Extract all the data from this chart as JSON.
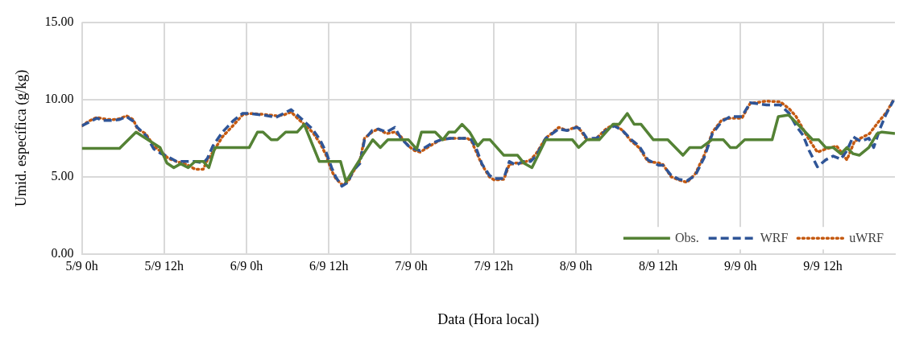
{
  "chart_data": {
    "type": "line",
    "xlabel": "Data (Hora local)",
    "ylabel": "Umid. específica (g/kg)",
    "xlim": [
      "--09-05T00:00",
      "--09-09T22:30"
    ],
    "xticks": [
      {
        "value": "--09-05T00:00",
        "label": "5/9 0h"
      },
      {
        "value": "--09-05T12:00",
        "label": "5/9 12h"
      },
      {
        "value": "--09-06T00:00",
        "label": "6/9 0h"
      },
      {
        "value": "--09-06T12:00",
        "label": "6/9 12h"
      },
      {
        "value": "--09-07T00:00",
        "label": "7/9 0h"
      },
      {
        "value": "--09-07T12:00",
        "label": "7/9 12h"
      },
      {
        "value": "--09-08T00:00",
        "label": "8/9 0h"
      },
      {
        "value": "--09-08T12:00",
        "label": "8/9 12h"
      },
      {
        "value": "--09-09T00:00",
        "label": "9/9 0h"
      },
      {
        "value": "--09-09T12:00",
        "label": "9/9 12h"
      }
    ],
    "ylim": [
      0,
      15
    ],
    "yticks": [
      {
        "value": 0,
        "label": "0.00"
      },
      {
        "value": 5,
        "label": "5.00"
      },
      {
        "value": 10,
        "label": "10.00"
      },
      {
        "value": 15,
        "label": "15.00"
      }
    ],
    "grid": true,
    "legend": "bottom right",
    "marker": "none",
    "series": [
      {
        "name": "Obs.",
        "color": "#548235",
        "line_style": "solid",
        "x": [
          "--09-05T00:00",
          "--09-05T05:30",
          "--09-05T07:54",
          "--09-05T11:24",
          "--09-05T12:24",
          "--09-05T13:24",
          "--09-05T14:24",
          "--09-05T15:30",
          "--09-05T16:30",
          "--09-05T17:42",
          "--09-05T18:30",
          "--09-05T19:24",
          "--09-06T00:24",
          "--09-06T01:36",
          "--09-06T02:24",
          "--09-06T03:36",
          "--09-06T04:30",
          "--09-06T05:42",
          "--09-06T07:24",
          "--09-06T08:24",
          "--09-06T10:36",
          "--09-06T13:42",
          "--09-06T14:30",
          "--09-06T16:54",
          "--09-06T18:24",
          "--09-06T19:30",
          "--09-06T20:36",
          "--09-06T23:36",
          "--09-07T00:48",
          "--09-07T01:30",
          "--09-07T03:30",
          "--09-07T04:36",
          "--09-07T05:30",
          "--09-07T06:24",
          "--09-07T07:24",
          "--09-07T08:30",
          "--09-07T09:42",
          "--09-07T10:30",
          "--09-07T11:30",
          "--09-07T13:30",
          "--09-07T15:30",
          "--09-07T16:24",
          "--09-07T17:36",
          "--09-07T19:36",
          "--09-07T23:30",
          "--09-08T00:24",
          "--09-08T01:36",
          "--09-08T03:24",
          "--09-08T05:24",
          "--09-08T06:18",
          "--09-08T07:30",
          "--09-08T08:30",
          "--09-08T09:30",
          "--09-08T11:18",
          "--09-08T13:24",
          "--09-08T15:36",
          "--09-08T16:36",
          "--09-08T18:18",
          "--09-08T19:48",
          "--09-08T21:30",
          "--09-08T22:30",
          "--09-08T23:24",
          "--09-09T00:36",
          "--09-09T04:36",
          "--09-09T05:30",
          "--09-09T07:00",
          "--09-09T08:48",
          "--09-09T10:30",
          "--09-09T11:24",
          "--09-09T12:24",
          "--09-09T13:30",
          "--09-09T14:36",
          "--09-09T15:30",
          "--09-09T16:24",
          "--09-09T17:18",
          "--09-09T18:42",
          "--09-09T19:54",
          "--09-09T20:36",
          "--09-09T22:30"
        ],
        "values": [
          6.85,
          6.85,
          7.9,
          6.9,
          5.9,
          5.6,
          5.85,
          5.6,
          6.0,
          6.0,
          5.6,
          6.9,
          6.9,
          7.9,
          7.9,
          7.4,
          7.4,
          7.9,
          7.9,
          8.4,
          6.0,
          6.0,
          4.7,
          6.4,
          7.4,
          6.9,
          7.4,
          7.4,
          6.8,
          7.9,
          7.9,
          7.4,
          7.9,
          7.9,
          8.4,
          7.9,
          7.0,
          7.4,
          7.4,
          6.4,
          6.4,
          5.9,
          5.6,
          7.4,
          7.4,
          6.9,
          7.4,
          7.4,
          8.4,
          8.4,
          9.1,
          8.4,
          8.4,
          7.4,
          7.4,
          6.4,
          6.9,
          6.9,
          7.4,
          7.4,
          6.9,
          6.9,
          7.4,
          7.4,
          8.9,
          9.0,
          8.2,
          7.4,
          7.4,
          6.9,
          6.9,
          6.5,
          6.9,
          6.5,
          6.4,
          6.9,
          7.8,
          7.9,
          7.8
        ]
      },
      {
        "name": "WRF",
        "color": "#2f5597",
        "line_style": "dashed",
        "x": [
          "--09-05T00:00",
          "--09-05T02:12",
          "--09-05T03:00",
          "--09-05T04:24",
          "--09-05T05:24",
          "--09-05T06:30",
          "--09-05T07:30",
          "--09-05T08:06",
          "--09-05T09:18",
          "--09-05T10:30",
          "--09-05T11:36",
          "--09-05T12:36",
          "--09-05T13:48",
          "--09-05T15:18",
          "--09-05T16:30",
          "--09-05T17:42",
          "--09-05T18:18",
          "--09-05T19:06",
          "--09-05T20:30",
          "--09-05T22:00",
          "--09-05T23:24",
          "--09-06T00:24",
          "--09-06T02:24",
          "--09-06T04:18",
          "--09-06T05:24",
          "--09-06T06:30",
          "--09-06T07:24",
          "--09-06T08:24",
          "--09-06T09:36",
          "--09-06T10:42",
          "--09-06T11:36",
          "--09-06T12:24",
          "--09-06T13:00",
          "--09-06T13:54",
          "--09-06T14:48",
          "--09-06T15:30",
          "--09-06T16:30",
          "--09-06T17:12",
          "--09-06T18:18",
          "--09-06T19:12",
          "--09-06T20:24",
          "--09-06T21:36",
          "--09-06T22:30",
          "--09-06T23:36",
          "--09-07T00:30",
          "--09-07T01:18",
          "--09-07T03:06",
          "--09-07T04:18",
          "--09-07T05:48",
          "--09-07T08:12",
          "--09-07T08:48",
          "--09-07T09:36",
          "--09-07T10:18",
          "--09-07T11:24",
          "--09-07T12:06",
          "--09-07T13:30",
          "--09-07T14:18",
          "--09-07T15:18",
          "--09-07T16:12",
          "--09-07T17:24",
          "--09-07T18:12",
          "--09-07T19:36",
          "--09-07T21:30",
          "--09-07T22:42",
          "--09-08T00:06",
          "--09-08T00:42",
          "--09-08T01:36",
          "--09-08T03:00",
          "--09-08T04:24",
          "--09-08T05:36",
          "--09-08T06:48",
          "--09-08T08:06",
          "--09-08T09:12",
          "--09-08T10:30",
          "--09-08T12:06",
          "--09-08T12:42",
          "--09-08T13:54",
          "--09-08T15:00",
          "--09-08T16:12",
          "--09-08T17:24",
          "--09-08T18:42",
          "--09-08T19:54",
          "--09-08T21:18",
          "--09-08T22:30",
          "--09-09T00:12",
          "--09-09T01:24",
          "--09-09T03:48",
          "--09-09T05:48",
          "--09-09T07:06",
          "--09-09T08:06",
          "--09-09T09:06",
          "--09-09T10:00",
          "--09-09T11:12",
          "--09-09T12:24",
          "--09-09T13:30",
          "--09-09T14:36",
          "--09-09T15:30",
          "--09-09T16:24",
          "--09-09T17:30",
          "--09-09T18:42",
          "--09-09T19:24",
          "--09-09T20:18",
          "--09-09T21:12",
          "--09-09T22:18"
        ],
        "values": [
          8.3,
          8.8,
          8.65,
          8.65,
          8.7,
          8.9,
          8.6,
          8.2,
          7.7,
          6.8,
          6.5,
          6.3,
          6.0,
          6.0,
          6.0,
          5.9,
          6.2,
          7.0,
          7.9,
          8.6,
          9.1,
          9.1,
          9.0,
          8.85,
          9.1,
          9.35,
          9.0,
          8.6,
          8.1,
          7.4,
          6.6,
          5.6,
          5.0,
          4.4,
          4.65,
          5.4,
          5.85,
          7.4,
          8.0,
          8.1,
          7.9,
          8.2,
          7.5,
          7.0,
          6.8,
          6.7,
          7.2,
          7.4,
          7.5,
          7.5,
          7.4,
          6.7,
          5.85,
          5.1,
          4.9,
          4.9,
          6.0,
          5.75,
          6.0,
          6.0,
          6.35,
          7.5,
          8.1,
          8.0,
          8.2,
          8.1,
          7.5,
          7.5,
          8.0,
          8.3,
          8.0,
          7.4,
          7.0,
          6.1,
          5.75,
          5.75,
          5.1,
          4.85,
          4.75,
          5.1,
          6.25,
          7.8,
          8.6,
          8.9,
          8.9,
          9.8,
          9.65,
          9.65,
          9.1,
          8.3,
          7.7,
          6.7,
          5.65,
          6.1,
          6.35,
          6.15,
          6.7,
          7.6,
          7.3,
          7.5,
          6.9,
          8.1,
          9.05,
          9.95
        ]
      },
      {
        "name": "uWRF",
        "color": "#c55a11",
        "line_style": "dotted",
        "x": [
          "--09-05T00:00",
          "--09-05T01:00",
          "--09-05T02:12",
          "--09-05T03:12",
          "--09-05T04:24",
          "--09-05T05:24",
          "--09-05T06:30",
          "--09-05T07:30",
          "--09-05T08:06",
          "--09-05T09:18",
          "--09-05T10:30",
          "--09-05T11:36",
          "--09-05T12:36",
          "--09-05T13:48",
          "--09-05T15:18",
          "--09-05T16:30",
          "--09-05T17:42",
          "--09-05T18:18",
          "--09-05T19:06",
          "--09-05T20:30",
          "--09-05T22:00",
          "--09-05T23:24",
          "--09-06T00:24",
          "--09-06T02:24",
          "--09-06T04:18",
          "--09-06T05:24",
          "--09-06T06:30",
          "--09-06T07:24",
          "--09-06T08:24",
          "--09-06T09:36",
          "--09-06T10:42",
          "--09-06T11:36",
          "--09-06T12:24",
          "--09-06T13:00",
          "--09-06T13:54",
          "--09-06T14:48",
          "--09-06T15:30",
          "--09-06T16:30",
          "--09-06T17:12",
          "--09-06T18:18",
          "--09-06T19:12",
          "--09-06T20:24",
          "--09-06T21:36",
          "--09-06T22:30",
          "--09-06T23:36",
          "--09-07T00:30",
          "--09-07T01:18",
          "--09-07T03:06",
          "--09-07T04:18",
          "--09-07T05:48",
          "--09-07T08:12",
          "--09-07T08:48",
          "--09-07T09:36",
          "--09-07T10:18",
          "--09-07T11:24",
          "--09-07T12:06",
          "--09-07T13:30",
          "--09-07T14:18",
          "--09-07T15:18",
          "--09-07T16:12",
          "--09-07T17:24",
          "--09-07T18:12",
          "--09-07T19:36",
          "--09-07T21:30",
          "--09-07T22:42",
          "--09-08T00:06",
          "--09-08T00:42",
          "--09-08T01:36",
          "--09-08T03:00",
          "--09-08T04:24",
          "--09-08T05:36",
          "--09-08T06:48",
          "--09-08T08:06",
          "--09-08T09:12",
          "--09-08T10:30",
          "--09-08T12:06",
          "--09-08T12:42",
          "--09-08T13:54",
          "--09-08T15:00",
          "--09-08T16:12",
          "--09-08T17:24",
          "--09-08T18:42",
          "--09-08T19:54",
          "--09-08T21:18",
          "--09-08T22:30",
          "--09-09T00:12",
          "--09-09T01:24",
          "--09-09T03:48",
          "--09-09T05:48",
          "--09-09T07:06",
          "--09-09T08:06",
          "--09-09T09:06",
          "--09-09T10:00",
          "--09-09T11:12",
          "--09-09T12:24",
          "--09-09T14:00",
          "--09-09T15:30",
          "--09-09T16:36",
          "--09-09T18:48",
          "--09-09T20:00",
          "--09-09T21:18",
          "--09-09T22:18"
        ],
        "values": [
          8.3,
          8.6,
          8.85,
          8.75,
          8.7,
          8.75,
          8.95,
          8.7,
          8.1,
          7.8,
          7.0,
          6.6,
          6.2,
          6.0,
          5.8,
          5.5,
          5.5,
          6.1,
          6.6,
          7.6,
          8.3,
          9.0,
          9.1,
          9.05,
          8.95,
          9.0,
          9.2,
          8.8,
          8.4,
          7.9,
          7.2,
          6.4,
          5.4,
          4.9,
          4.5,
          4.7,
          5.3,
          6.0,
          7.5,
          7.9,
          8.1,
          7.8,
          7.9,
          7.6,
          7.0,
          6.7,
          6.6,
          7.1,
          7.4,
          7.5,
          7.5,
          7.3,
          6.5,
          5.8,
          5.0,
          4.8,
          4.85,
          5.8,
          5.9,
          5.9,
          6.1,
          6.5,
          7.5,
          8.2,
          8.0,
          8.25,
          8.0,
          7.4,
          7.5,
          8.1,
          8.4,
          8.0,
          7.3,
          6.9,
          6.0,
          5.9,
          5.8,
          5.0,
          4.8,
          4.65,
          5.2,
          6.4,
          7.9,
          8.7,
          8.8,
          8.8,
          9.75,
          9.9,
          9.85,
          9.4,
          8.9,
          8.1,
          7.4,
          6.6,
          6.8,
          7.0,
          6.1,
          7.3,
          7.8,
          8.5,
          9.2,
          10.0
        ]
      }
    ]
  }
}
